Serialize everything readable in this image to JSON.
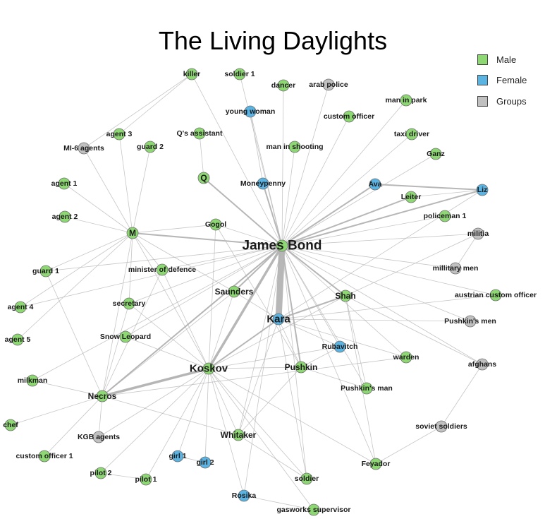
{
  "title": "The Living Daylights",
  "legend": [
    {
      "label": "Male",
      "color": "#8ed873"
    },
    {
      "label": "Female",
      "color": "#5bb3e2"
    },
    {
      "label": "Groups",
      "color": "#c0c0c0"
    }
  ],
  "edge_color": "#b3b3b3",
  "nodes": [
    {
      "id": "James Bond",
      "group": "Male",
      "size": "xl"
    },
    {
      "id": "Kara",
      "group": "Female",
      "size": "l"
    },
    {
      "id": "Koskov",
      "group": "Male",
      "size": "l"
    },
    {
      "id": "Necros",
      "group": "Male",
      "size": "m"
    },
    {
      "id": "M",
      "group": "Male",
      "size": "m"
    },
    {
      "id": "Q",
      "group": "Male",
      "size": "m"
    },
    {
      "id": "Shah",
      "group": "Male",
      "size": "m"
    },
    {
      "id": "Pushkin",
      "group": "Male",
      "size": "m"
    },
    {
      "id": "Whitaker",
      "group": "Male",
      "size": "m"
    },
    {
      "id": "Saunders",
      "group": "Male",
      "size": "m"
    },
    {
      "id": "killer",
      "group": "Male",
      "size": "s"
    },
    {
      "id": "soldier 1",
      "group": "Male",
      "size": "s"
    },
    {
      "id": "dancer",
      "group": "Male",
      "size": "s"
    },
    {
      "id": "arab police",
      "group": "Groups",
      "size": "s"
    },
    {
      "id": "man in park",
      "group": "Male",
      "size": "s"
    },
    {
      "id": "young woman",
      "group": "Female",
      "size": "s"
    },
    {
      "id": "custom officer",
      "group": "Male",
      "size": "s"
    },
    {
      "id": "agent 3",
      "group": "Male",
      "size": "s"
    },
    {
      "id": "Q's assistant",
      "group": "Male",
      "size": "s"
    },
    {
      "id": "taxi driver",
      "group": "Male",
      "size": "s"
    },
    {
      "id": "MI-6 agents",
      "group": "Groups",
      "size": "s"
    },
    {
      "id": "guard 2",
      "group": "Male",
      "size": "s"
    },
    {
      "id": "man in shooting",
      "group": "Male",
      "size": "s"
    },
    {
      "id": "Ganz",
      "group": "Male",
      "size": "s"
    },
    {
      "id": "Moneypenny",
      "group": "Female",
      "size": "s"
    },
    {
      "id": "Ava",
      "group": "Female",
      "size": "s"
    },
    {
      "id": "Liz",
      "group": "Female",
      "size": "s"
    },
    {
      "id": "agent 1",
      "group": "Male",
      "size": "s"
    },
    {
      "id": "Leiter",
      "group": "Male",
      "size": "s"
    },
    {
      "id": "agent 2",
      "group": "Male",
      "size": "s"
    },
    {
      "id": "policeman 1",
      "group": "Male",
      "size": "s"
    },
    {
      "id": "Gogol",
      "group": "Male",
      "size": "s"
    },
    {
      "id": "militia",
      "group": "Groups",
      "size": "s"
    },
    {
      "id": "guard 1",
      "group": "Male",
      "size": "s"
    },
    {
      "id": "minister of defence",
      "group": "Male",
      "size": "s"
    },
    {
      "id": "millitary men",
      "group": "Groups",
      "size": "s"
    },
    {
      "id": "austrian custom officer",
      "group": "Male",
      "size": "s"
    },
    {
      "id": "secretary",
      "group": "Male",
      "size": "s"
    },
    {
      "id": "agent 4",
      "group": "Male",
      "size": "s"
    },
    {
      "id": "Pushkin's men",
      "group": "Groups",
      "size": "s"
    },
    {
      "id": "Snow Leopard",
      "group": "Male",
      "size": "s"
    },
    {
      "id": "agent 5",
      "group": "Male",
      "size": "s"
    },
    {
      "id": "Rubavitch",
      "group": "Female",
      "size": "s"
    },
    {
      "id": "warden",
      "group": "Male",
      "size": "s"
    },
    {
      "id": "afghans",
      "group": "Groups",
      "size": "s"
    },
    {
      "id": "milkman",
      "group": "Male",
      "size": "s"
    },
    {
      "id": "Pushkin's man",
      "group": "Male",
      "size": "s"
    },
    {
      "id": "chef",
      "group": "Male",
      "size": "s"
    },
    {
      "id": "KGB agents",
      "group": "Groups",
      "size": "s"
    },
    {
      "id": "soviet soldiers",
      "group": "Groups",
      "size": "s"
    },
    {
      "id": "custom officer 1",
      "group": "Male",
      "size": "s"
    },
    {
      "id": "girl 1",
      "group": "Female",
      "size": "s"
    },
    {
      "id": "girl 2",
      "group": "Female",
      "size": "s"
    },
    {
      "id": "Feyador",
      "group": "Male",
      "size": "s"
    },
    {
      "id": "pilot 2",
      "group": "Male",
      "size": "s"
    },
    {
      "id": "pilot 1",
      "group": "Male",
      "size": "s"
    },
    {
      "id": "soldier",
      "group": "Male",
      "size": "s"
    },
    {
      "id": "Rosika",
      "group": "Female",
      "size": "s"
    },
    {
      "id": "gasworks supervisor",
      "group": "Male",
      "size": "s"
    }
  ],
  "edges": [
    [
      "James Bond",
      "Kara",
      10
    ],
    [
      "James Bond",
      "Koskov",
      4
    ],
    [
      "Koskov",
      "Necros",
      5
    ],
    [
      "James Bond",
      "M",
      3
    ],
    [
      "James Bond",
      "Q",
      3
    ],
    [
      "James Bond",
      "Ava",
      2
    ],
    [
      "James Bond",
      "Liz",
      2
    ],
    [
      "James Bond",
      "Leiter",
      2
    ],
    [
      "James Bond",
      "Moneypenny",
      2
    ],
    [
      "James Bond",
      "Saunders",
      2
    ],
    [
      "James Bond",
      "Pushkin",
      2
    ],
    [
      "James Bond",
      "Shah",
      2
    ],
    [
      "James Bond",
      "Necros",
      2
    ],
    [
      "Kara",
      "Shah",
      2
    ],
    [
      "Kara",
      "Koskov",
      2
    ],
    [
      "Kara",
      "Whitaker",
      1
    ],
    [
      "Kara",
      "Pushkin",
      1
    ],
    [
      "Ava",
      "Liz",
      2
    ],
    [
      "M",
      "Koskov",
      1
    ],
    [
      "Koskov",
      "Pushkin",
      1
    ],
    [
      "Koskov",
      "Whitaker",
      1
    ],
    [
      "Necros",
      "James Bond",
      1
    ],
    [
      "Koskov",
      "Feyador",
      1
    ],
    [
      "Koskov",
      "soldier",
      1
    ],
    [
      "James Bond",
      "killer",
      1
    ],
    [
      "James Bond",
      "soldier 1",
      1
    ],
    [
      "James Bond",
      "dancer",
      1
    ],
    [
      "James Bond",
      "arab police",
      1
    ],
    [
      "James Bond",
      "man in park",
      1
    ],
    [
      "James Bond",
      "young woman",
      1
    ],
    [
      "James Bond",
      "custom officer",
      1
    ],
    [
      "James Bond",
      "taxi driver",
      1
    ],
    [
      "James Bond",
      "man in shooting",
      1
    ],
    [
      "James Bond",
      "Ganz",
      1
    ],
    [
      "James Bond",
      "Gogol",
      1
    ],
    [
      "James Bond",
      "policeman 1",
      1
    ],
    [
      "James Bond",
      "militia",
      1
    ],
    [
      "James Bond",
      "millitary men",
      1
    ],
    [
      "James Bond",
      "austrian custom officer",
      1
    ],
    [
      "James Bond",
      "Pushkin's men",
      1
    ],
    [
      "James Bond",
      "Rubavitch",
      1
    ],
    [
      "James Bond",
      "warden",
      1
    ],
    [
      "James Bond",
      "afghans",
      1
    ],
    [
      "James Bond",
      "Pushkin's man",
      1
    ],
    [
      "James Bond",
      "minister of defence",
      1
    ],
    [
      "James Bond",
      "secretary",
      1
    ],
    [
      "James Bond",
      "Whitaker",
      1
    ],
    [
      "James Bond",
      "Feyador",
      1
    ],
    [
      "James Bond",
      "soldier",
      1
    ],
    [
      "James Bond",
      "Rosika",
      1
    ],
    [
      "James Bond",
      "Snow Leopard",
      1
    ],
    [
      "James Bond",
      "agent 4",
      1
    ],
    [
      "James Bond",
      "guard 1",
      1
    ],
    [
      "James Bond",
      "milkman",
      1
    ],
    [
      "Q",
      "Q's assistant",
      1
    ],
    [
      "killer",
      "agent 3",
      1
    ],
    [
      "killer",
      "MI-6 agents",
      1
    ],
    [
      "M",
      "agent 3",
      1
    ],
    [
      "M",
      "MI-6 agents",
      1
    ],
    [
      "M",
      "agent 1",
      1
    ],
    [
      "M",
      "agent 2",
      1
    ],
    [
      "M",
      "guard 2",
      1
    ],
    [
      "M",
      "Gogol",
      1
    ],
    [
      "M",
      "guard 1",
      1
    ],
    [
      "M",
      "minister of defence",
      1
    ],
    [
      "M",
      "secretary",
      1
    ],
    [
      "M",
      "agent 4",
      1
    ],
    [
      "M",
      "agent 5",
      1
    ],
    [
      "M",
      "Necros",
      1
    ],
    [
      "M",
      "Saunders",
      1
    ],
    [
      "Gogol",
      "Koskov",
      1
    ],
    [
      "Gogol",
      "Pushkin",
      1
    ],
    [
      "minister of defence",
      "Koskov",
      1
    ],
    [
      "minister of defence",
      "Necros",
      1
    ],
    [
      "secretary",
      "Koskov",
      1
    ],
    [
      "secretary",
      "Necros",
      1
    ],
    [
      "Saunders",
      "Koskov",
      1
    ],
    [
      "Saunders",
      "Necros",
      1
    ],
    [
      "Snow Leopard",
      "Koskov",
      1
    ],
    [
      "Necros",
      "milkman",
      1
    ],
    [
      "Necros",
      "chef",
      1
    ],
    [
      "Necros",
      "KGB agents",
      1
    ],
    [
      "Necros",
      "custom officer 1",
      1
    ],
    [
      "Necros",
      "guard 1",
      1
    ],
    [
      "Necros",
      "Whitaker",
      1
    ],
    [
      "Koskov",
      "KGB agents",
      1
    ],
    [
      "Koskov",
      "girl 1",
      1
    ],
    [
      "Koskov",
      "girl 2",
      1
    ],
    [
      "Koskov",
      "pilot 2",
      1
    ],
    [
      "Koskov",
      "pilot 1",
      1
    ],
    [
      "Koskov",
      "Rosika",
      1
    ],
    [
      "Koskov",
      "gasworks supervisor",
      1
    ],
    [
      "Koskov",
      "Shah",
      1
    ],
    [
      "Koskov",
      "Rubavitch",
      1
    ],
    [
      "Pushkin",
      "Rubavitch",
      1
    ],
    [
      "Pushkin",
      "Pushkin's man",
      1
    ],
    [
      "Pushkin",
      "Whitaker",
      1
    ],
    [
      "Shah",
      "afghans",
      1
    ],
    [
      "Shah",
      "Feyador",
      1
    ],
    [
      "Shah",
      "Pushkin's man",
      1
    ],
    [
      "Shah",
      "militia",
      1
    ],
    [
      "Kara",
      "Rubavitch",
      1
    ],
    [
      "Kara",
      "austrian custom officer",
      1
    ],
    [
      "Kara",
      "Pushkin's men",
      1
    ],
    [
      "Kara",
      "Liz",
      1
    ],
    [
      "Kara",
      "warden",
      1
    ],
    [
      "Kara",
      "Saunders",
      1
    ],
    [
      "Kara",
      "soldier",
      1
    ],
    [
      "afghans",
      "soviet soldiers",
      1
    ],
    [
      "soviet soldiers",
      "Feyador",
      1
    ],
    [
      "warden",
      "Necros",
      1
    ],
    [
      "pilot 2",
      "pilot 1",
      1
    ],
    [
      "girl 1",
      "girl 2",
      1
    ],
    [
      "Rosika",
      "gasworks supervisor",
      1
    ],
    [
      "Moneypenny",
      "young woman",
      1
    ],
    [
      "Koskov",
      "Necros",
      1
    ],
    [
      "Whitaker",
      "soldier",
      1
    ],
    [
      "Leiter",
      "Liz",
      1
    ],
    [
      "Shah",
      "James Bond",
      1
    ],
    [
      "militia",
      "millitary men",
      1
    ]
  ]
}
